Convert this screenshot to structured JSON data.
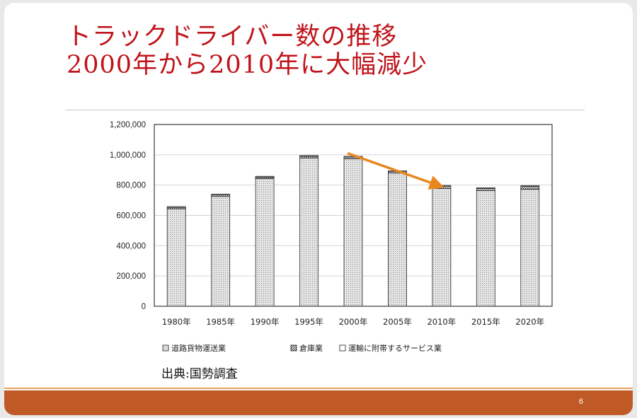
{
  "slide": {
    "title_line1": "トラックドライバー数の推移",
    "title_line2": "2000年から2010年に大幅減少",
    "source": "出典:国勢調査",
    "page_number": "6"
  },
  "colors": {
    "title": "#c0141b",
    "footer": "#bf5a27",
    "arrow": "#e8871e",
    "bar_fill": "#d9d9d9"
  },
  "chart_data": {
    "type": "bar",
    "stacked": true,
    "categories": [
      "1980年",
      "1985年",
      "1990年",
      "1995年",
      "2000年",
      "2005年",
      "2010年",
      "2015年",
      "2020年"
    ],
    "series": [
      {
        "name": "道路貨物運送業",
        "values": [
          643000,
          725000,
          843000,
          978000,
          973000,
          879000,
          778000,
          763000,
          772000
        ]
      },
      {
        "name": "倉庫業",
        "values": [
          10000,
          10000,
          10000,
          12000,
          12000,
          10000,
          15000,
          15000,
          20000
        ]
      },
      {
        "name": "運輸に附帯するサービス業",
        "values": [
          5000,
          5000,
          5000,
          5000,
          5000,
          5000,
          5000,
          5000,
          5000
        ]
      }
    ],
    "ylim": [
      0,
      1200000
    ],
    "yticks": [
      0,
      200000,
      400000,
      600000,
      800000,
      1000000,
      1200000
    ],
    "ytick_labels": [
      "0",
      "200,000",
      "400,000",
      "600,000",
      "800,000",
      "1,000,000",
      "1,200,000"
    ],
    "grid": true,
    "legend_position": "bottom",
    "annotation": {
      "type": "arrow",
      "from_category": "2000年",
      "to_category": "2010年"
    }
  }
}
